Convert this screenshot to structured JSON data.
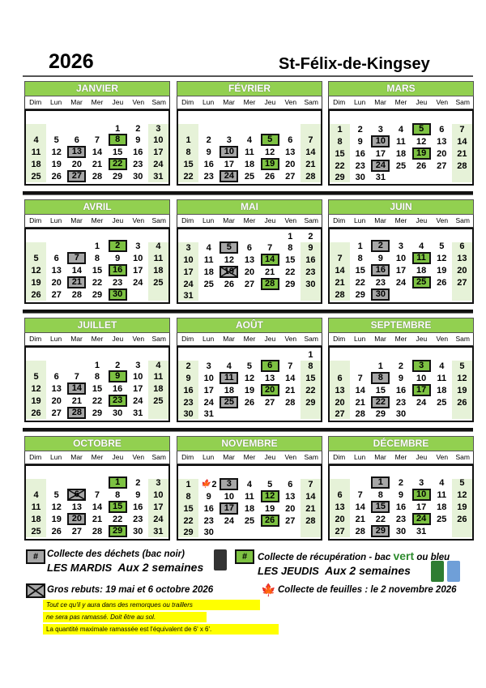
{
  "title": {
    "year": "2026",
    "town": "St-Félix-de-Kingsey"
  },
  "day_names": [
    "Dim",
    "Lun",
    "Mar",
    "Mer",
    "Jeu",
    "Ven",
    "Sam"
  ],
  "colors": {
    "header": "#92d050",
    "recycling": "#7dc242",
    "garbage": "#a6a6a6",
    "weekend": "#e6f2d8",
    "note": "#ffff00"
  },
  "months": [
    {
      "name": "JANVIER",
      "start": 4,
      "days": 31,
      "green": [
        8,
        22
      ],
      "gray": [
        13,
        27
      ],
      "x": [],
      "leaf": []
    },
    {
      "name": "FÉVRIER",
      "start": 0,
      "days": 28,
      "green": [
        5,
        19
      ],
      "gray": [
        10,
        24
      ],
      "x": [],
      "leaf": []
    },
    {
      "name": "MARS",
      "start": 0,
      "days": 31,
      "green": [
        5,
        19
      ],
      "gray": [
        10,
        24
      ],
      "x": [],
      "leaf": []
    },
    {
      "name": "AVRIL",
      "start": 3,
      "days": 30,
      "green": [
        2,
        16,
        30
      ],
      "gray": [
        7,
        21
      ],
      "x": [],
      "leaf": []
    },
    {
      "name": "MAI",
      "start": 5,
      "days": 31,
      "green": [
        14,
        28
      ],
      "gray": [
        5
      ],
      "x": [
        19
      ],
      "leaf": []
    },
    {
      "name": "JUIN",
      "start": 1,
      "days": 30,
      "green": [
        11,
        25
      ],
      "gray": [
        2,
        16,
        30
      ],
      "x": [],
      "leaf": []
    },
    {
      "name": "JUILLET",
      "start": 3,
      "days": 31,
      "green": [
        9,
        23
      ],
      "gray": [
        14,
        28
      ],
      "x": [],
      "leaf": []
    },
    {
      "name": "AOÛT",
      "start": 6,
      "days": 31,
      "green": [
        6,
        20
      ],
      "gray": [
        11,
        25
      ],
      "x": [],
      "leaf": []
    },
    {
      "name": "SEPTEMBRE",
      "start": 2,
      "days": 30,
      "green": [
        3,
        17
      ],
      "gray": [
        8,
        22
      ],
      "x": [],
      "leaf": []
    },
    {
      "name": "OCTOBRE",
      "start": 4,
      "days": 31,
      "green": [
        1,
        15,
        29
      ],
      "gray": [
        20
      ],
      "x": [
        6
      ],
      "leaf": []
    },
    {
      "name": "NOVEMBRE",
      "start": 0,
      "days": 30,
      "green": [
        12,
        26
      ],
      "gray": [
        3,
        17
      ],
      "x": [],
      "leaf": [
        2
      ]
    },
    {
      "name": "DÉCEMBRE",
      "start": 2,
      "days": 31,
      "green": [
        10,
        24
      ],
      "gray": [
        1,
        15,
        29
      ],
      "x": [],
      "leaf": []
    }
  ],
  "legend": {
    "box_symbol": "#",
    "garbage_line1": "Collecte des déchets (bac noir)",
    "garbage_line2a": "LES MARDIS",
    "garbage_line2b": "Aux 2 semaines",
    "recycling_line1a": "Collecte de récupération - bac ",
    "recycling_vert": "vert",
    "recycling_line1b": " ou bleu",
    "recycling_line2a": "LES JEUDIS",
    "recycling_line2b": "Aux 2 semaines",
    "bulky": "Gros rebuts:  19 mai et 6 octobre 2026",
    "leaves": "Collecte de feuilles : le 2 novembre 2026",
    "note1": "Tout ce qu'il y aura dans des remorques ou traillers",
    "note2": "ne sera pas ramassé.  Doit être au sol.",
    "note3": "La quantité maximale ramassée est l'équivalent de 6' x 6'."
  }
}
